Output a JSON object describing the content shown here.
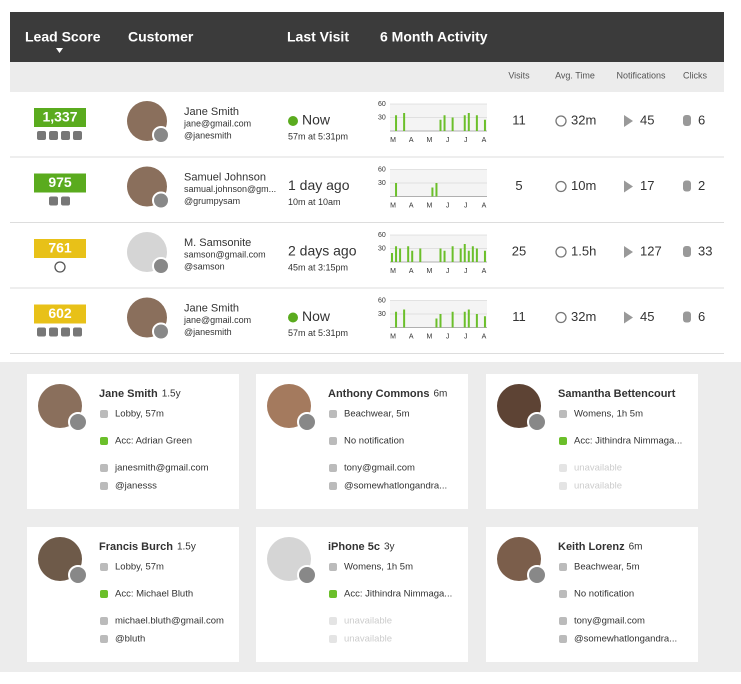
{
  "header": {
    "columns": [
      "Lead Score",
      "Customer",
      "Last Visit",
      "6 Month Activity"
    ]
  },
  "subheader": [
    "Visits",
    "Avg. Time",
    "Notifications",
    "Clicks"
  ],
  "activity_axis": {
    "ylim": [
      0,
      60
    ],
    "yticks": [
      30,
      60
    ],
    "months": [
      "M",
      "A",
      "M",
      "J",
      "J",
      "A"
    ]
  },
  "rows": [
    {
      "score": "1,337",
      "score_color": "#5aab1e",
      "name": "Jane Smith",
      "email": "jane@gmail.com",
      "handle": "@janesmith",
      "last_visit": "Now",
      "online": true,
      "last_visit_detail": "57m at 5:31pm",
      "activity": [
        0,
        35,
        0,
        40,
        0,
        0,
        0,
        0,
        0,
        0,
        0,
        0,
        25,
        35,
        0,
        30,
        0,
        0,
        35,
        40,
        0,
        35,
        0,
        25
      ],
      "visits": 11,
      "avg_time": "32m",
      "notifications": 45,
      "clicks": 6
    },
    {
      "score": "975",
      "score_color": "#5aab1e",
      "name": "Samuel Johnson",
      "email": "samual.johnson@gm...",
      "handle": "@grumpysam",
      "last_visit": "1 day ago",
      "online": false,
      "last_visit_detail": "10m at 10am",
      "activity": [
        0,
        30,
        0,
        0,
        0,
        0,
        0,
        0,
        0,
        0,
        20,
        30,
        0,
        0,
        0,
        0,
        0,
        0,
        0,
        0,
        0,
        0,
        0,
        0
      ],
      "visits": 5,
      "avg_time": "10m",
      "notifications": 17,
      "clicks": 2
    },
    {
      "score": "761",
      "score_color": "#e8c118",
      "name": "M. Samsonite",
      "email": "samson@gmail.com",
      "handle": "@samson",
      "last_visit": "2 days ago",
      "online": false,
      "last_visit_detail": "45m at 3:15pm",
      "activity": [
        20,
        35,
        30,
        0,
        35,
        25,
        0,
        30,
        0,
        0,
        0,
        0,
        30,
        25,
        0,
        35,
        0,
        30,
        40,
        25,
        35,
        30,
        0,
        25
      ],
      "visits": 25,
      "avg_time": "1.5h",
      "notifications": 127,
      "clicks": 33
    },
    {
      "score": "602",
      "score_color": "#e8c118",
      "name": "Jane Smith",
      "email": "jane@gmail.com",
      "handle": "@janesmith",
      "last_visit": "Now",
      "online": true,
      "last_visit_detail": "57m at 5:31pm",
      "activity": [
        0,
        35,
        0,
        40,
        0,
        0,
        0,
        0,
        0,
        0,
        0,
        20,
        30,
        0,
        0,
        35,
        0,
        0,
        35,
        40,
        0,
        30,
        0,
        25
      ],
      "visits": 11,
      "avg_time": "32m",
      "notifications": 45,
      "clicks": 6
    }
  ],
  "cards": [
    {
      "name": "Jane Smith",
      "age": "1.5y",
      "location": "Lobby, 57m",
      "assignment": "Acc: Adrian Green",
      "email": "janesmith@gmail.com",
      "social": "@janesss"
    },
    {
      "name": "Anthony Commons",
      "age": "6m",
      "location": "Beachwear, 5m",
      "assignment": "No notification",
      "email": "tony@gmail.com",
      "social": "@somewhatlongandra..."
    },
    {
      "name": "Samantha Bettencourt",
      "location": "Womens, 1h 5m",
      "assignment": "Acc: Jithindra Nimmaga...",
      "email": "unavailable",
      "social": "unavailable"
    },
    {
      "name": "Francis Burch",
      "age": "1.5y",
      "location": "Lobby, 57m",
      "assignment": "Acc: Michael Bluth",
      "email": "michael.bluth@gmail.com",
      "social": "@bluth"
    },
    {
      "name": "iPhone 5c",
      "age": "3y",
      "location": "Womens, 1h 5m",
      "assignment": "Acc: Jithindra Nimmaga...",
      "email": "unavailable",
      "social": "unavailable"
    },
    {
      "name": "Keith Lorenz",
      "age": "6m",
      "location": "Beachwear, 5m",
      "assignment": "No notification",
      "email": "tony@gmail.com",
      "social": "@somewhatlongandra..."
    }
  ]
}
